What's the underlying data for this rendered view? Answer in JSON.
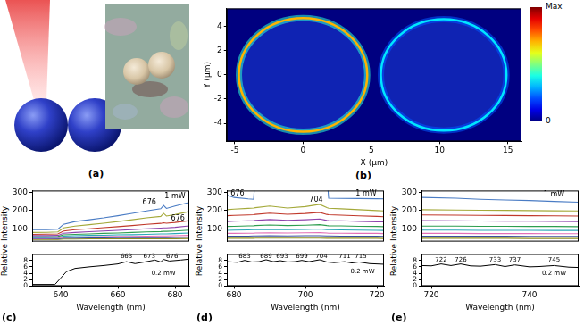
{
  "panel_a": {
    "label": "(a)"
  },
  "chart_data": [
    {
      "label": "(b)",
      "type": "heatmap",
      "x_label": "X (μm)",
      "y_label": "Y (μm)",
      "xlim": [
        -5.6,
        16
      ],
      "xticks": [
        -5,
        0,
        5,
        10,
        15
      ],
      "ylim": [
        -5.5,
        5.5
      ],
      "yticks": [
        -4,
        -2,
        0,
        2,
        4
      ],
      "grid": false,
      "rings": [
        {
          "x": 0,
          "y": 0,
          "radius": 4.7,
          "intensity": 0.7
        },
        {
          "x": 10.3,
          "y": 0,
          "radius": 4.6,
          "intensity": 0.35
        }
      ],
      "colorbar": {
        "range": [
          0,
          1
        ],
        "ticks": [
          {
            "value": 1,
            "label": "Max"
          },
          0
        ]
      }
    },
    {
      "label": "(c)",
      "type": "line",
      "x_label": "Wavelength (nm)",
      "y_label": "Relative Intensity",
      "xlim": [
        630,
        685
      ],
      "xticks": [
        640,
        660,
        680
      ],
      "grid": false,
      "upper": {
        "ylim": [
          30,
          310
        ],
        "yticks": [
          100,
          200,
          300
        ],
        "x": [
          630,
          635,
          639,
          641,
          645,
          650,
          655,
          660,
          665,
          670,
          675,
          676,
          677,
          680,
          685
        ],
        "series": [
          {
            "color": "#4a7cc4",
            "values": [
              95,
              96,
              98,
              125,
              140,
              150,
              160,
              172,
              185,
              198,
              210,
              228,
              212,
              225,
              245
            ]
          },
          {
            "color": "#a4a93a",
            "values": [
              80,
              81,
              83,
              105,
              115,
              123,
              131,
              140,
              150,
              160,
              168,
              185,
              170,
              178,
              195
            ]
          },
          {
            "color": "#c0392b",
            "values": [
              70,
              71,
              72,
              88,
              95,
              100,
              106,
              112,
              118,
              125,
              130,
              133,
              131,
              135,
              145
            ]
          },
          {
            "color": "#8e44ad",
            "values": [
              63,
              63,
              64,
              76,
              80,
              84,
              88,
              92,
              96,
              100,
              104,
              105,
              105,
              108,
              116
            ]
          },
          {
            "color": "#2e9e4f",
            "values": [
              57,
              57,
              58,
              67,
              70,
              72,
              75,
              77,
              80,
              83,
              85,
              86,
              86,
              88,
              93
            ]
          },
          {
            "color": "#2aa7b8",
            "values": [
              52,
              52,
              53,
              60,
              62,
              64,
              65,
              67,
              68,
              70,
              72,
              72,
              72,
              74,
              77
            ]
          },
          {
            "color": "#e36fb8",
            "values": [
              48,
              48,
              49,
              54,
              55,
              56,
              57,
              58,
              59,
              60,
              61,
              61,
              61,
              62,
              64
            ]
          },
          {
            "color": "#3a4fa0",
            "values": [
              45,
              45,
              45,
              49,
              49,
              50,
              50,
              51,
              51,
              52,
              52,
              52,
              52,
              53,
              54
            ]
          },
          {
            "color": "#8c8c1e",
            "values": [
              42,
              42,
              42,
              44,
              44,
              45,
              45,
              45,
              46,
              46,
              46,
              46,
              46,
              46,
              47
            ]
          }
        ],
        "annotations": [
          {
            "text": "676",
            "x": 671,
            "y": 245
          },
          {
            "text": "1 mW",
            "x": 680,
            "y": 280
          },
          {
            "text": "676",
            "x": 681,
            "y": 158
          }
        ]
      },
      "lower": {
        "ylim": [
          0,
          10
        ],
        "yticks": [
          0,
          2,
          4,
          6,
          8
        ],
        "x": [
          630,
          638,
          640,
          642,
          645,
          650,
          655,
          660,
          663,
          666,
          670,
          673,
          675,
          676,
          678,
          682,
          685
        ],
        "series": [
          {
            "color": "#000000",
            "values": [
              0.5,
              0.5,
              2.5,
              4.5,
              5.5,
              6.0,
              6.4,
              6.9,
              7.6,
              7.0,
              7.6,
              8.1,
              7.5,
              8.3,
              7.8,
              8.1,
              8.4
            ]
          }
        ],
        "annotations": [
          {
            "text": "663",
            "x": 663,
            "y": 9.2
          },
          {
            "text": "673",
            "x": 671,
            "y": 9.2
          },
          {
            "text": "676",
            "x": 679,
            "y": 9.2
          },
          {
            "text": "0.2 mW",
            "x": 676,
            "y": 4
          }
        ]
      }
    },
    {
      "label": "(d)",
      "type": "line",
      "x_label": "Wavelength (nm)",
      "y_label": "Relative Intensity",
      "xlim": [
        678,
        722
      ],
      "xticks": [
        680,
        700,
        720
      ],
      "grid": false,
      "upper": {
        "ylim": [
          30,
          310
        ],
        "yticks": [
          100,
          200,
          300
        ],
        "x": [
          678,
          680,
          684,
          685.5,
          686,
          690,
          695,
          700,
          704,
          706,
          706.5,
          710,
          715,
          720,
          722
        ],
        "series": [
          {
            "color": "#4a7cc4",
            "values": [
              285,
              272,
              264,
              262,
              400,
              400,
              400,
              400,
              400,
              400,
              268,
              267,
              266,
              265,
              264
            ]
          },
          {
            "color": "#a4a93a",
            "values": [
              205,
              208,
              212,
              214,
              216,
              225,
              214,
              222,
              234,
              216,
              213,
              210,
              205,
              200,
              198
            ]
          },
          {
            "color": "#c0392b",
            "values": [
              172,
              174,
              176,
              177,
              179,
              186,
              180,
              184,
              190,
              179,
              177,
              175,
              171,
              168,
              166
            ]
          },
          {
            "color": "#8e44ad",
            "values": [
              140,
              142,
              144,
              145,
              146,
              151,
              147,
              150,
              154,
              146,
              145,
              144,
              141,
              139,
              138
            ]
          },
          {
            "color": "#2e9e4f",
            "values": [
              113,
              114,
              116,
              117,
              118,
              121,
              118,
              120,
              123,
              118,
              117,
              116,
              114,
              113,
              112
            ]
          },
          {
            "color": "#2aa7b8",
            "values": [
              92,
              93,
              94,
              95,
              95,
              97,
              96,
              97,
              99,
              95,
              95,
              94,
              93,
              92,
              91
            ]
          },
          {
            "color": "#e36fb8",
            "values": [
              75,
              75,
              76,
              76,
              77,
              78,
              77,
              78,
              79,
              77,
              76,
              76,
              75,
              75,
              74
            ]
          },
          {
            "color": "#3a4fa0",
            "values": [
              60,
              60,
              60,
              61,
              61,
              62,
              61,
              62,
              62,
              61,
              61,
              60,
              60,
              60,
              59
            ]
          },
          {
            "color": "#8c8c1e",
            "values": [
              48,
              48,
              48,
              48,
              49,
              49,
              49,
              49,
              49,
              48,
              48,
              48,
              48,
              48,
              47
            ]
          }
        ],
        "annotations": [
          {
            "text": "676",
            "x": 681,
            "y": 292
          },
          {
            "text": "704",
            "x": 703,
            "y": 258
          },
          {
            "text": "1 mW",
            "x": 717,
            "y": 292
          }
        ]
      },
      "lower": {
        "ylim": [
          0,
          10
        ],
        "yticks": [
          0,
          2,
          4,
          6,
          8
        ],
        "x": [
          678,
          681,
          683,
          685,
          687,
          689,
          691,
          693,
          695,
          697,
          699,
          701,
          704,
          706,
          708,
          711,
          713,
          715,
          718,
          722
        ],
        "series": [
          {
            "color": "#000000",
            "values": [
              7.6,
              7.4,
              8.0,
              7.5,
              7.6,
              8.2,
              7.6,
              7.9,
              7.5,
              7.6,
              8.0,
              7.6,
              8.2,
              7.5,
              7.3,
              7.6,
              7.2,
              7.5,
              7.0,
              6.8
            ]
          }
        ],
        "annotations": [
          {
            "text": "683",
            "x": 683,
            "y": 9.2
          },
          {
            "text": "689",
            "x": 689,
            "y": 9.2
          },
          {
            "text": "693",
            "x": 693.5,
            "y": 9.2
          },
          {
            "text": "699",
            "x": 699,
            "y": 9.2
          },
          {
            "text": "704",
            "x": 704.5,
            "y": 9.2
          },
          {
            "text": "711",
            "x": 711,
            "y": 9.2
          },
          {
            "text": "715",
            "x": 715.5,
            "y": 9.2
          },
          {
            "text": "0.2 mW",
            "x": 716,
            "y": 4.5
          }
        ]
      }
    },
    {
      "label": "(e)",
      "type": "line",
      "x_label": "Wavelength (nm)",
      "y_label": "Relative Intensity",
      "xlim": [
        718,
        750
      ],
      "xticks": [
        720,
        740
      ],
      "grid": false,
      "upper": {
        "ylim": [
          30,
          310
        ],
        "yticks": [
          100,
          200,
          300
        ],
        "x": [
          718,
          725,
          730,
          735,
          740,
          745,
          750
        ],
        "series": [
          {
            "color": "#4a7cc4",
            "values": [
              272,
              268,
              262,
              258,
              255,
              250,
              246
            ]
          },
          {
            "color": "#a4a93a",
            "values": [
              205,
              203,
              202,
              201,
              200,
              199,
              198
            ]
          },
          {
            "color": "#c0392b",
            "values": [
              176,
              175,
              174,
              173,
              172,
              171,
              170
            ]
          },
          {
            "color": "#8e44ad",
            "values": [
              145,
              144,
              143,
              142,
              142,
              141,
              140
            ]
          },
          {
            "color": "#2e9e4f",
            "values": [
              115,
              115,
              114,
              114,
              113,
              113,
              112
            ]
          },
          {
            "color": "#2aa7b8",
            "values": [
              93,
              93,
              92,
              92,
              92,
              91,
              91
            ]
          },
          {
            "color": "#e36fb8",
            "values": [
              75,
              75,
              74,
              74,
              74,
              73,
              73
            ]
          },
          {
            "color": "#3a4fa0",
            "values": [
              60,
              60,
              60,
              60,
              59,
              59,
              59
            ]
          },
          {
            "color": "#8c8c1e",
            "values": [
              48,
              48,
              48,
              48,
              47,
              47,
              47
            ]
          }
        ],
        "annotations": [
          {
            "text": "1 mW",
            "x": 745,
            "y": 290
          }
        ]
      },
      "lower": {
        "ylim": [
          0,
          10
        ],
        "yticks": [
          0,
          2,
          4,
          6,
          8
        ],
        "x": [
          718,
          720,
          722,
          724,
          726,
          728,
          730,
          733,
          735,
          737,
          740,
          742,
          745,
          748,
          750
        ],
        "series": [
          {
            "color": "#000000",
            "values": [
              6.4,
              6.3,
              6.9,
              6.4,
              6.9,
              6.3,
              6.2,
              6.7,
              6.1,
              6.6,
              6.0,
              6.1,
              6.4,
              5.9,
              5.8
            ]
          }
        ],
        "annotations": [
          {
            "text": "722",
            "x": 722,
            "y": 8.2
          },
          {
            "text": "726",
            "x": 726,
            "y": 8.2
          },
          {
            "text": "733",
            "x": 733,
            "y": 8.2
          },
          {
            "text": "737",
            "x": 737,
            "y": 8.2
          },
          {
            "text": "745",
            "x": 745,
            "y": 8.2
          },
          {
            "text": "0.2 mW",
            "x": 745,
            "y": 4
          }
        ]
      }
    }
  ]
}
